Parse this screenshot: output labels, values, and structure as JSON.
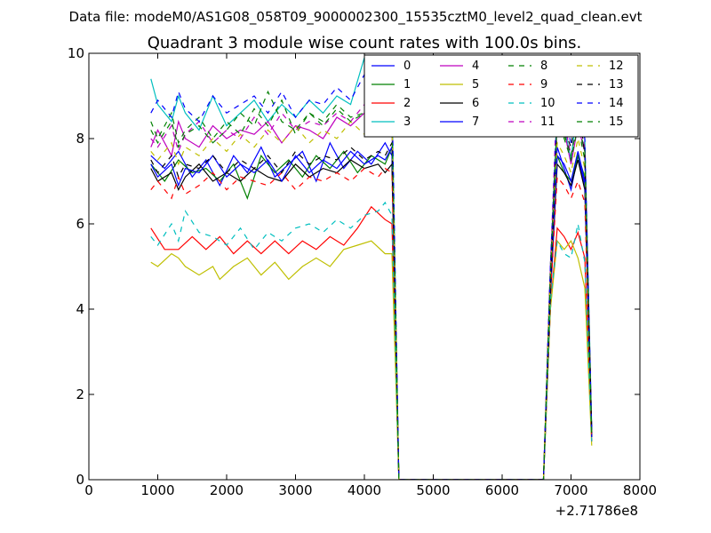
{
  "chart_data": {
    "type": "line",
    "suptitle": "Data file: modeM0/AS1G08_058T09_9000002300_15535cztM0_level2_quad_clean.evt",
    "title": "Quadrant 3 module wise count rates with 100.0s bins.",
    "xlabel": "",
    "ylabel": "",
    "x_offset_label": "+2.71786e8",
    "xlim": [
      0,
      8000
    ],
    "ylim": [
      0,
      10
    ],
    "xticks": [
      0,
      1000,
      2000,
      3000,
      4000,
      5000,
      6000,
      7000,
      8000
    ],
    "yticks": [
      0,
      2,
      4,
      6,
      8,
      10
    ],
    "grid": false,
    "legend": {
      "location": "upper right",
      "columns": 4
    },
    "series_styles": [
      {
        "color": "#0000ff",
        "dash": "solid"
      },
      {
        "color": "#008000",
        "dash": "solid"
      },
      {
        "color": "#ff0000",
        "dash": "solid"
      },
      {
        "color": "#00bfbf",
        "dash": "solid"
      },
      {
        "color": "#bf00bf",
        "dash": "solid"
      },
      {
        "color": "#bfbf00",
        "dash": "solid"
      },
      {
        "color": "#000000",
        "dash": "solid"
      },
      {
        "color": "#0000ff",
        "dash": "solid"
      },
      {
        "color": "#008000",
        "dash": "dashed"
      },
      {
        "color": "#ff0000",
        "dash": "dashed"
      },
      {
        "color": "#00bfbf",
        "dash": "dashed"
      },
      {
        "color": "#bf00bf",
        "dash": "dashed"
      },
      {
        "color": "#bfbf00",
        "dash": "dashed"
      },
      {
        "color": "#000000",
        "dash": "dashed"
      },
      {
        "color": "#0000ff",
        "dash": "dashed"
      },
      {
        "color": "#008000",
        "dash": "dashed"
      }
    ],
    "series": [
      {
        "name": "0",
        "x": [
          900,
          1100,
          1300,
          1500,
          1700,
          1900,
          2100,
          2300,
          2500,
          2700,
          2900,
          3100,
          3300,
          3500,
          3700,
          3900,
          4100,
          4300,
          4400,
          4500,
          6600,
          6700,
          6800,
          6900,
          7000,
          7100,
          7200,
          7300
        ],
        "y": [
          7.6,
          7.3,
          7.7,
          7.1,
          7.5,
          6.9,
          7.6,
          7.2,
          7.8,
          7.1,
          7.4,
          7.7,
          7.0,
          7.9,
          7.3,
          7.7,
          7.4,
          7.9,
          7.6,
          0,
          0,
          4.5,
          7.8,
          7.3,
          6.8,
          7.6,
          6.9,
          1.1
        ]
      },
      {
        "name": "1",
        "x": [
          900,
          1100,
          1300,
          1500,
          1700,
          1900,
          2100,
          2300,
          2500,
          2700,
          2900,
          3100,
          3300,
          3500,
          3700,
          3900,
          4100,
          4300,
          4400,
          4500,
          6600,
          6700,
          6800,
          6900,
          7000,
          7100,
          7200,
          7300
        ],
        "y": [
          7.4,
          7.0,
          7.5,
          7.2,
          7.3,
          7.0,
          7.4,
          6.6,
          7.6,
          7.2,
          7.5,
          7.1,
          7.6,
          7.3,
          7.7,
          7.2,
          7.6,
          7.4,
          7.8,
          0,
          0,
          4.6,
          7.6,
          7.2,
          7.0,
          7.6,
          7.1,
          1.0
        ]
      },
      {
        "name": "2",
        "x": [
          900,
          1100,
          1300,
          1500,
          1700,
          1900,
          2100,
          2300,
          2500,
          2700,
          2900,
          3100,
          3300,
          3500,
          3700,
          3900,
          4100,
          4300,
          4400,
          4500,
          6600,
          6700,
          6800,
          6900,
          7000,
          7100,
          7200,
          7300
        ],
        "y": [
          5.9,
          5.4,
          5.4,
          5.7,
          5.4,
          5.7,
          5.3,
          5.6,
          5.3,
          5.6,
          5.3,
          5.6,
          5.4,
          5.7,
          5.5,
          5.9,
          6.4,
          6.1,
          6.0,
          0,
          0,
          4.0,
          5.9,
          5.7,
          5.4,
          5.8,
          5.2,
          0.9
        ]
      },
      {
        "name": "3",
        "x": [
          900,
          1000,
          1200,
          1300,
          1400,
          1600,
          1800,
          2000,
          2200,
          2400,
          2600,
          2800,
          3000,
          3200,
          3400,
          3600,
          3800,
          4000,
          4200,
          4300,
          4400,
          4500,
          6600,
          6700,
          6800,
          6900,
          7000,
          7100,
          7200,
          7300
        ],
        "y": [
          9.4,
          8.8,
          8.4,
          9.0,
          8.6,
          8.2,
          9.0,
          8.3,
          8.6,
          8.9,
          8.4,
          8.8,
          8.5,
          8.9,
          8.6,
          9.0,
          8.8,
          9.9,
          9.6,
          9.3,
          9.0,
          0,
          0,
          5.0,
          8.6,
          8.3,
          7.5,
          8.9,
          8.0,
          1.2
        ]
      },
      {
        "name": "4",
        "x": [
          900,
          1000,
          1200,
          1300,
          1400,
          1600,
          1800,
          2000,
          2200,
          2400,
          2600,
          2800,
          3000,
          3200,
          3400,
          3600,
          3800,
          4000,
          4200,
          4300,
          4400,
          4500,
          6600,
          6700,
          6800,
          6900,
          7000,
          7100,
          7200,
          7300
        ],
        "y": [
          7.8,
          8.2,
          7.6,
          8.4,
          8.0,
          7.8,
          8.3,
          8.0,
          8.2,
          8.1,
          8.4,
          7.9,
          8.3,
          8.2,
          8.0,
          8.5,
          8.3,
          8.6,
          8.2,
          8.7,
          8.4,
          0,
          0,
          5.0,
          8.4,
          8.2,
          7.4,
          8.3,
          7.7,
          1.1
        ]
      },
      {
        "name": "5",
        "x": [
          900,
          1000,
          1200,
          1300,
          1400,
          1600,
          1800,
          1900,
          2100,
          2300,
          2500,
          2700,
          2900,
          3100,
          3300,
          3500,
          3700,
          3900,
          4100,
          4300,
          4400,
          4500,
          6600,
          6700,
          6800,
          6900,
          7000,
          7100,
          7200,
          7300
        ],
        "y": [
          5.1,
          5.0,
          5.3,
          5.2,
          5.0,
          4.8,
          5.0,
          4.7,
          5.0,
          5.2,
          4.8,
          5.1,
          4.7,
          5.0,
          5.2,
          5.0,
          5.4,
          5.5,
          5.6,
          5.3,
          5.3,
          0,
          0,
          4.0,
          5.6,
          5.4,
          5.6,
          5.2,
          4.5,
          0.8
        ]
      },
      {
        "name": "6",
        "x": [
          900,
          1000,
          1200,
          1300,
          1400,
          1600,
          1800,
          2000,
          2200,
          2400,
          2600,
          2800,
          3000,
          3200,
          3400,
          3600,
          3800,
          4000,
          4200,
          4300,
          4400,
          4500,
          6600,
          6700,
          6800,
          6900,
          7000,
          7100,
          7200,
          7300
        ],
        "y": [
          7.3,
          7.0,
          7.2,
          6.8,
          7.1,
          7.4,
          7.0,
          7.2,
          7.0,
          7.3,
          7.1,
          7.0,
          7.4,
          7.1,
          7.3,
          7.2,
          7.5,
          7.3,
          7.4,
          7.2,
          7.4,
          0,
          0,
          4.3,
          7.4,
          7.2,
          6.9,
          7.5,
          6.8,
          1.0
        ]
      },
      {
        "name": "7",
        "x": [
          900,
          1000,
          1200,
          1300,
          1400,
          1600,
          1800,
          2000,
          2200,
          2400,
          2600,
          2800,
          3000,
          3200,
          3400,
          3600,
          3800,
          4000,
          4200,
          4300,
          4400,
          4500,
          6600,
          6700,
          6800,
          6900,
          7000,
          7100,
          7200,
          7300
        ],
        "y": [
          7.4,
          7.1,
          7.4,
          6.9,
          7.3,
          7.2,
          7.6,
          7.1,
          7.4,
          7.2,
          7.5,
          7.0,
          7.6,
          7.2,
          7.5,
          7.3,
          7.7,
          7.4,
          7.6,
          7.5,
          7.8,
          0,
          0,
          4.4,
          7.6,
          7.4,
          7.0,
          7.7,
          7.0,
          1.0
        ]
      },
      {
        "name": "8",
        "x": [
          900,
          1000,
          1200,
          1300,
          1400,
          1600,
          1800,
          2000,
          2200,
          2400,
          2600,
          2800,
          3000,
          3200,
          3400,
          3600,
          3800,
          4000,
          4200,
          4300,
          4400,
          4500,
          6600,
          6700,
          6800,
          6900,
          7000,
          7100,
          7200,
          7300
        ],
        "y": [
          8.4,
          8.0,
          8.6,
          7.9,
          8.2,
          8.5,
          8.0,
          8.4,
          8.1,
          8.7,
          8.3,
          8.9,
          8.1,
          8.6,
          8.4,
          8.8,
          8.5,
          8.6,
          8.3,
          8.7,
          8.5,
          0,
          0,
          5.0,
          8.4,
          8.0,
          7.5,
          8.3,
          7.5,
          1.1
        ]
      },
      {
        "name": "9",
        "x": [
          900,
          1000,
          1200,
          1300,
          1400,
          1600,
          1800,
          2000,
          2200,
          2400,
          2600,
          2800,
          3000,
          3200,
          3400,
          3600,
          3800,
          4000,
          4200,
          4300,
          4400,
          4500,
          6600,
          6700,
          6800,
          6900,
          7000,
          7100,
          7200,
          7300
        ],
        "y": [
          6.8,
          7.0,
          6.6,
          7.1,
          6.7,
          6.9,
          7.2,
          6.8,
          7.1,
          7.0,
          6.9,
          7.2,
          6.8,
          7.1,
          7.0,
          7.2,
          7.0,
          7.3,
          7.1,
          7.3,
          7.2,
          0,
          0,
          4.3,
          7.1,
          6.9,
          6.6,
          7.0,
          6.5,
          0.9
        ]
      },
      {
        "name": "10",
        "x": [
          900,
          1000,
          1200,
          1300,
          1400,
          1600,
          1800,
          2000,
          2200,
          2400,
          2600,
          2800,
          3000,
          3200,
          3400,
          3600,
          3800,
          4000,
          4200,
          4300,
          4400,
          4500,
          6600,
          6700,
          6800,
          6900,
          7000,
          7100,
          7200,
          7300
        ],
        "y": [
          5.7,
          5.5,
          6.0,
          5.6,
          6.3,
          5.8,
          5.7,
          5.5,
          5.9,
          5.4,
          5.8,
          5.6,
          5.9,
          6.0,
          5.8,
          6.1,
          5.9,
          6.2,
          6.3,
          6.5,
          6.2,
          0,
          0,
          4.2,
          5.6,
          5.3,
          5.2,
          6.0,
          5.1,
          0.9
        ]
      },
      {
        "name": "11",
        "x": [
          900,
          1000,
          1200,
          1300,
          1400,
          1600,
          1800,
          2000,
          2200,
          2400,
          2600,
          2800,
          3000,
          3200,
          3400,
          3600,
          3800,
          4000,
          4200,
          4300,
          4400,
          4500,
          6600,
          6700,
          6800,
          6900,
          7000,
          7100,
          7200,
          7300
        ],
        "y": [
          8.0,
          7.8,
          8.3,
          7.7,
          8.1,
          8.4,
          7.9,
          8.2,
          8.0,
          8.5,
          8.1,
          8.6,
          8.2,
          8.4,
          8.3,
          8.6,
          8.4,
          8.8,
          8.5,
          8.7,
          8.6,
          0,
          0,
          5.0,
          9.2,
          8.4,
          7.6,
          8.5,
          7.8,
          1.1
        ]
      },
      {
        "name": "12",
        "x": [
          900,
          1000,
          1200,
          1300,
          1400,
          1600,
          1800,
          2000,
          2200,
          2400,
          2600,
          2800,
          3000,
          3200,
          3400,
          3600,
          3800,
          4000,
          4200,
          4300,
          4400,
          4500,
          6600,
          6700,
          6800,
          6900,
          7000,
          7100,
          7200,
          7300
        ],
        "y": [
          7.7,
          7.5,
          7.9,
          7.4,
          7.8,
          7.6,
          8.0,
          7.7,
          8.1,
          7.8,
          8.2,
          7.9,
          8.3,
          7.9,
          8.2,
          8.0,
          8.4,
          8.1,
          8.4,
          8.2,
          8.5,
          0,
          0,
          4.8,
          7.9,
          7.6,
          7.2,
          8.0,
          7.3,
          1.0
        ]
      },
      {
        "name": "13",
        "x": [
          900,
          1000,
          1200,
          1300,
          1400,
          1600,
          1800,
          2000,
          2200,
          2400,
          2600,
          2800,
          3000,
          3200,
          3400,
          3600,
          3800,
          4000,
          4200,
          4300,
          4400,
          4500,
          6600,
          6700,
          6800,
          6900,
          7000,
          7100,
          7200,
          7300
        ],
        "y": [
          7.5,
          7.2,
          7.6,
          7.1,
          7.4,
          7.3,
          7.6,
          7.2,
          7.5,
          7.3,
          7.6,
          7.2,
          7.7,
          7.4,
          7.6,
          7.5,
          7.8,
          7.5,
          7.7,
          7.6,
          7.9,
          0,
          0,
          4.5,
          8.5,
          8.2,
          7.8,
          9.0,
          7.6,
          1.1
        ]
      },
      {
        "name": "14",
        "x": [
          900,
          1000,
          1200,
          1300,
          1400,
          1600,
          1800,
          2000,
          2200,
          2400,
          2600,
          2800,
          3000,
          3200,
          3400,
          3600,
          3800,
          4000,
          4200,
          4300,
          4400,
          4500,
          6600,
          6700,
          6800,
          6900,
          7000,
          7100,
          7200,
          7300
        ],
        "y": [
          8.6,
          8.9,
          8.5,
          9.1,
          8.7,
          8.4,
          9.0,
          8.6,
          8.8,
          9.0,
          8.6,
          9.1,
          8.5,
          8.9,
          8.8,
          9.2,
          8.9,
          9.5,
          9.1,
          9.3,
          9.1,
          0,
          0,
          5.0,
          8.8,
          8.5,
          7.9,
          8.9,
          8.0,
          1.1
        ]
      },
      {
        "name": "15",
        "x": [
          900,
          1000,
          1200,
          1300,
          1400,
          1600,
          1800,
          2000,
          2200,
          2400,
          2600,
          2800,
          3000,
          3200,
          3400,
          3600,
          3800,
          4000,
          4200,
          4300,
          4400,
          4500,
          6600,
          6700,
          6800,
          6900,
          7000,
          7100,
          7200,
          7300
        ],
        "y": [
          8.2,
          7.9,
          8.4,
          7.8,
          8.1,
          8.3,
          7.9,
          8.2,
          8.6,
          8.3,
          9.1,
          8.4,
          8.2,
          8.6,
          8.3,
          8.7,
          8.4,
          8.6,
          8.2,
          8.5,
          8.3,
          0,
          0,
          4.8,
          8.5,
          8.1,
          7.6,
          8.4,
          7.7,
          1.0
        ]
      }
    ]
  }
}
